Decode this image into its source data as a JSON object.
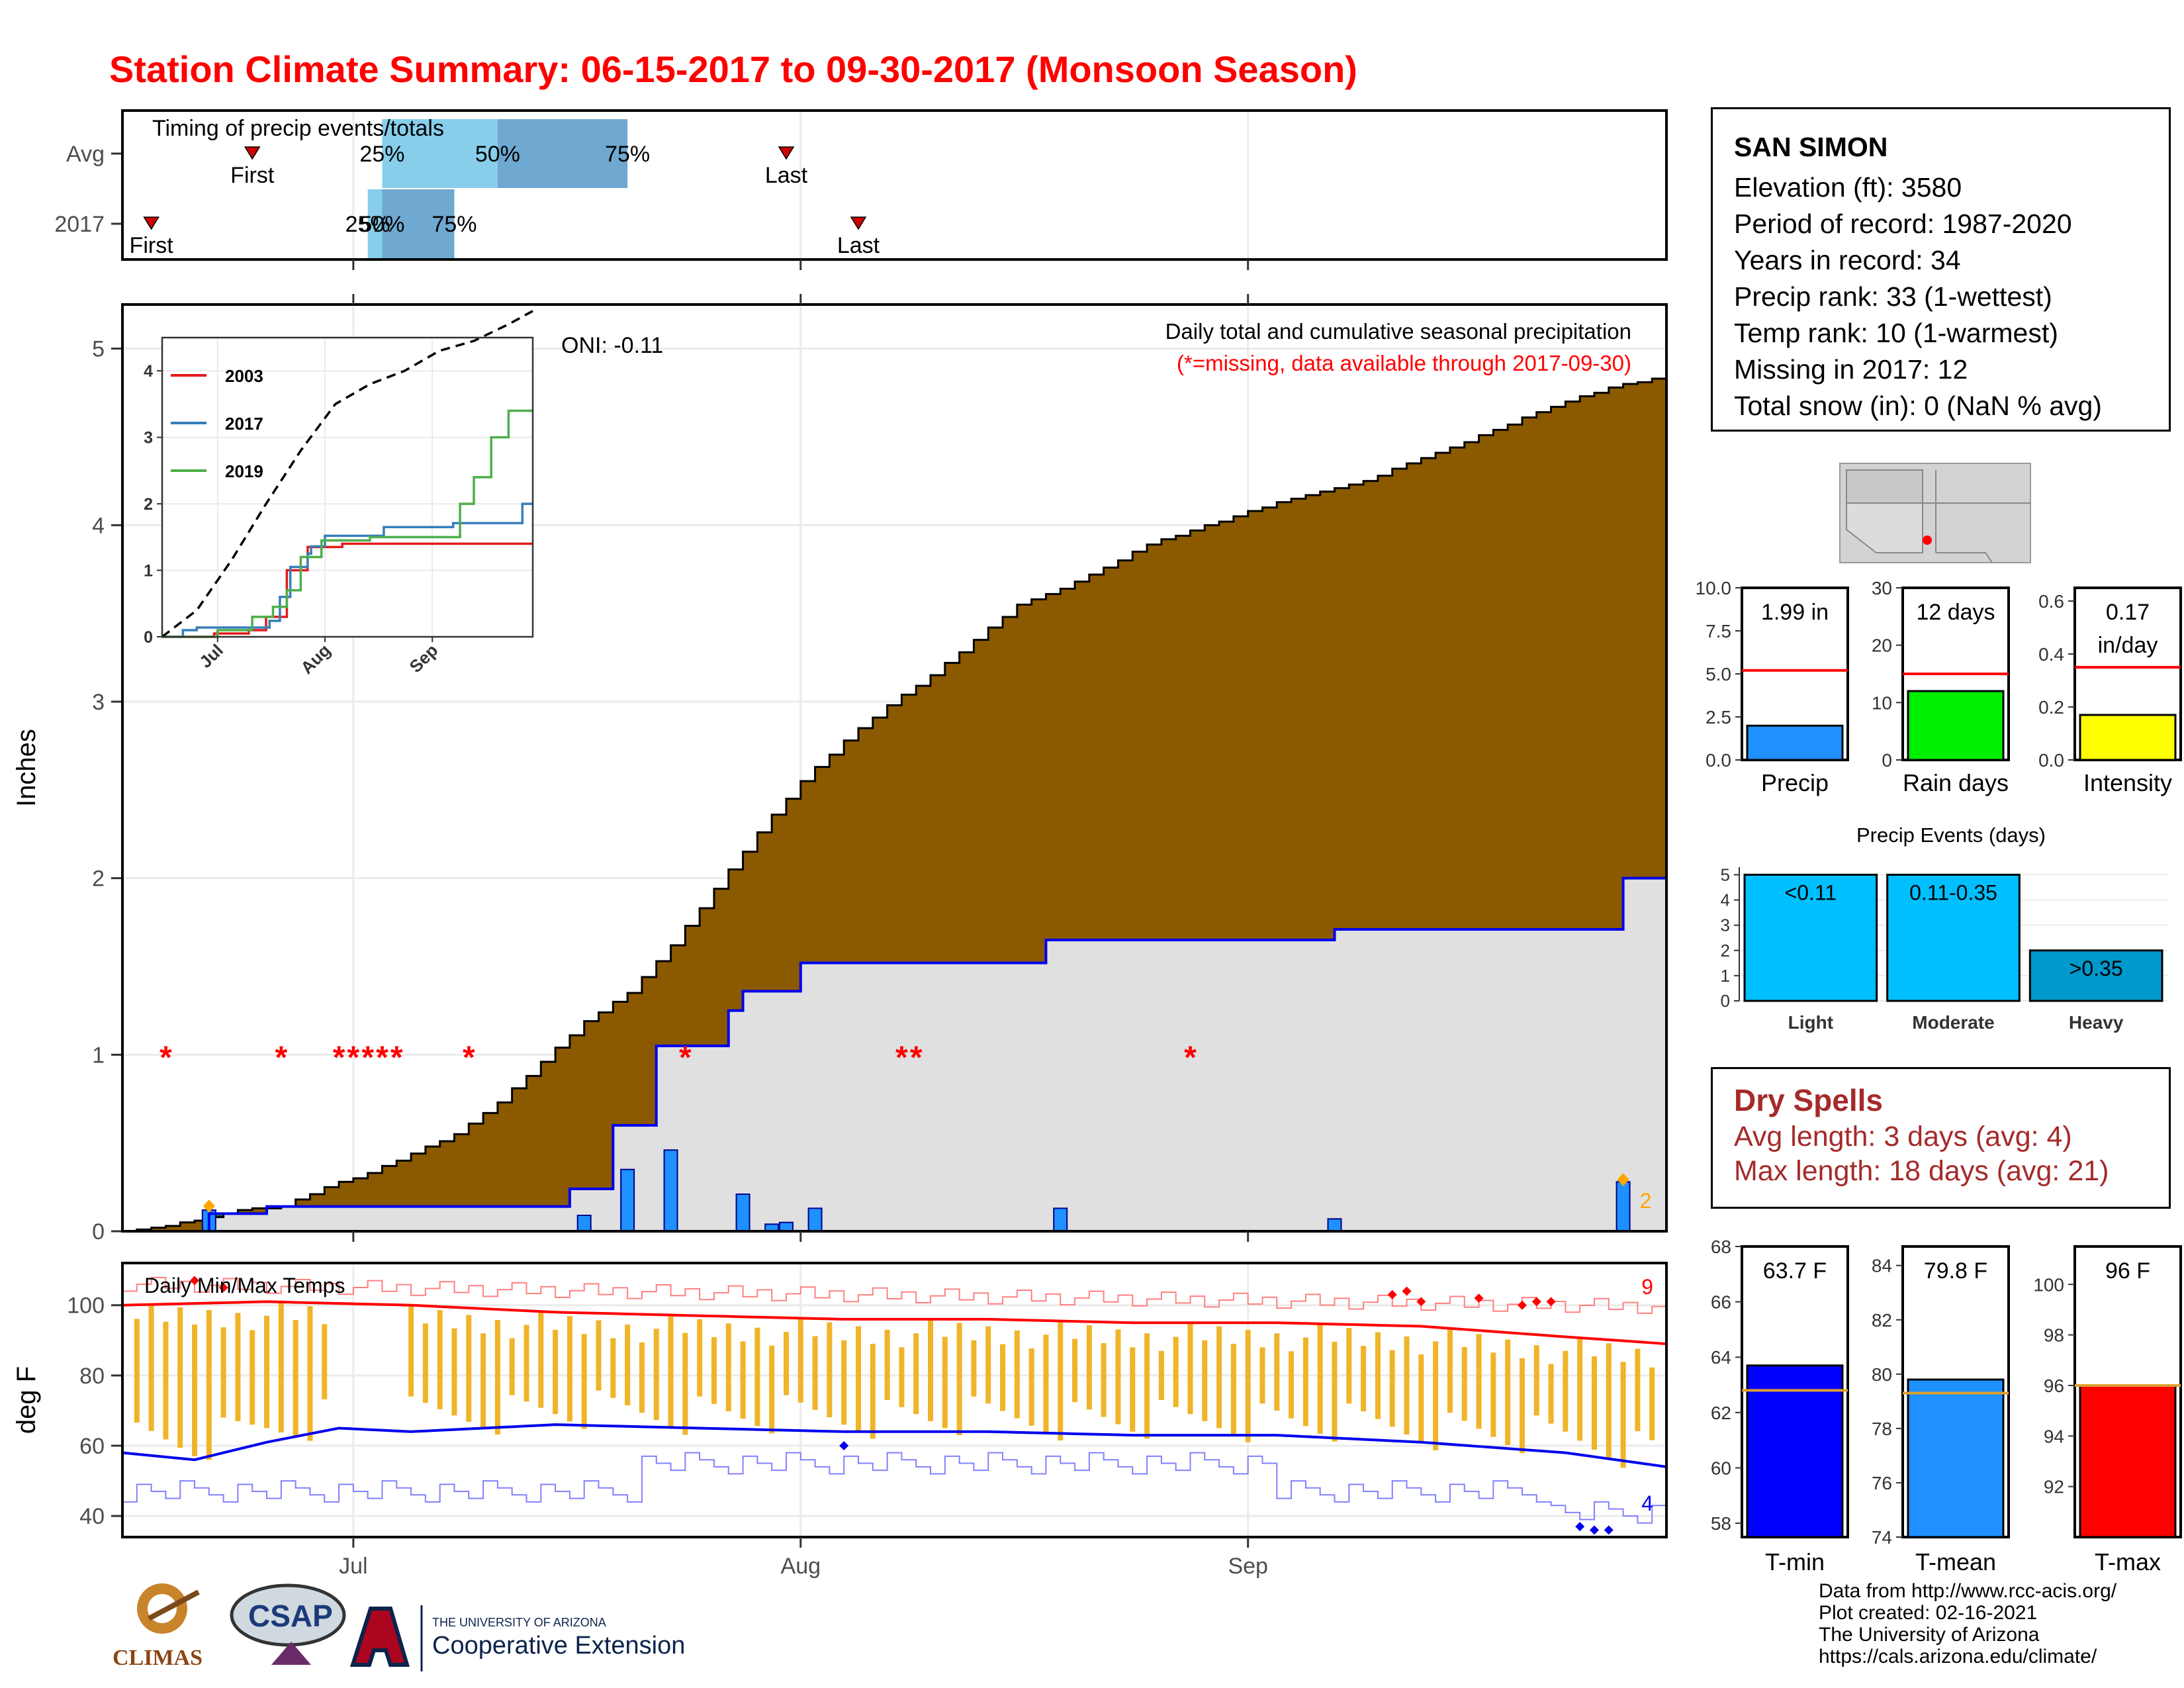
{
  "title": "Station Climate Summary: 06-15-2017 to 09-30-2017 (Monsoon Season)",
  "station": {
    "name": "SAN SIMON",
    "elevation": "Elevation (ft): 3580",
    "period": "Period of record: 1987-2020",
    "years": "Years in record: 34",
    "precip_rank": "Precip rank: 33 (1-wettest)",
    "temp_rank": "Temp rank: 10 (1-warmest)",
    "missing": "Missing in 2017: 12",
    "snow": "Total snow (in): 0 (NaN % avg)"
  },
  "dry_spells": {
    "heading": "Dry Spells",
    "avg": "Avg length: 3 days (avg: 4)",
    "max": "Max length: 18 days (avg: 21)"
  },
  "footer": {
    "line1": "Data from http://www.rcc-acis.org/",
    "line2": "Plot created: 02-16-2021",
    "line3": "The University of Arizona",
    "line4": "https://cals.arizona.edu/climate/"
  },
  "logos": {
    "climas": "CLIMAS",
    "csap": "CSAP",
    "ua_small": "THE UNIVERSITY OF ARIZONA",
    "ua_big": "Cooperative Extension"
  },
  "chart_data": [
    {
      "type": "bar",
      "title": "Timing of precip events/totals",
      "categories": [
        "Avg",
        "2017"
      ],
      "x_tick_labels": [
        "Jul",
        "Aug",
        "Sep"
      ],
      "x_day_range": [
        0,
        107
      ],
      "series": [
        {
          "name": "Avg",
          "first_day": 9,
          "q25_day": 18,
          "q50_day": 26,
          "q75_day": 35,
          "last_day": 46
        },
        {
          "name": "2017",
          "first_day": 2,
          "q25_day": 17,
          "q50_day": 18,
          "q75_day": 23,
          "last_day": 51
        }
      ],
      "labels": {
        "first": "First",
        "last": "Last",
        "q25": "25%",
        "q50": "50%",
        "q75": "75%"
      },
      "colors": {
        "light": "#87ceeb",
        "dark": "#6fa8d0",
        "marker": "#cc0000"
      }
    },
    {
      "type": "area",
      "title": "Daily total and cumulative seasonal precipitation",
      "subtitle": "(*=missing, data available through 2017-09-30)",
      "annotation": "ONI: -0.11",
      "ylabel": "Inches",
      "x_tick_labels": [
        "Jul",
        "Aug",
        "Sep"
      ],
      "ylim": [
        0,
        5.25
      ],
      "yticks": [
        0,
        1,
        2,
        3,
        4,
        5
      ],
      "avg_cumulative": {
        "day": [
          0,
          3,
          5,
          8,
          11,
          14,
          17,
          20,
          23,
          26,
          29,
          32,
          35,
          38,
          41,
          44,
          47,
          50,
          53,
          56,
          59,
          62,
          65,
          68,
          71,
          74,
          77,
          80,
          83,
          86,
          89,
          92,
          95,
          98,
          101,
          104,
          107
        ],
        "value": [
          0,
          0.03,
          0.06,
          0.12,
          0.14,
          0.25,
          0.33,
          0.44,
          0.55,
          0.73,
          0.96,
          1.19,
          1.35,
          1.62,
          1.94,
          2.26,
          2.55,
          2.78,
          2.98,
          3.15,
          3.35,
          3.55,
          3.64,
          3.76,
          3.89,
          3.97,
          4.05,
          4.13,
          4.19,
          4.25,
          4.35,
          4.44,
          4.54,
          4.64,
          4.73,
          4.8,
          4.84
        ]
      },
      "obs_cumulative": {
        "day": [
          0,
          6,
          10,
          31,
          34,
          37,
          42,
          43,
          47,
          64,
          84,
          104,
          107
        ],
        "value": [
          0,
          0.1,
          0.14,
          0.24,
          0.6,
          1.05,
          1.25,
          1.36,
          1.52,
          1.65,
          1.71,
          2.0,
          2.0
        ]
      },
      "daily_precip": {
        "day": [
          6,
          32,
          35,
          38,
          43,
          45,
          46,
          48,
          65,
          84,
          104
        ],
        "value": [
          0.12,
          0.09,
          0.35,
          0.46,
          0.21,
          0.04,
          0.05,
          0.13,
          0.13,
          0.07,
          0.28
        ]
      },
      "missing_days": [
        3,
        11,
        15,
        16,
        17,
        18,
        19,
        24,
        39,
        54,
        55,
        74
      ],
      "record_marker": {
        "day": 104,
        "label": "2"
      },
      "colors": {
        "above": "#8b5a00",
        "normal": "#e0e0e0",
        "below": "#1f7a1f",
        "bars": "#1e90ff",
        "obs_line": "#0000ee",
        "missing": "#ff0000",
        "record": "#ffa500"
      }
    },
    {
      "type": "line",
      "title": "",
      "x_tick_labels": [
        "Jul",
        "Aug",
        "Sep"
      ],
      "yticks": [
        0,
        1,
        2,
        3,
        4
      ],
      "ylim": [
        0,
        4.5
      ],
      "series": [
        {
          "name": "2003",
          "color": "#e41a1c",
          "day": [
            0,
            15,
            25,
            30,
            33,
            36,
            42,
            52,
            107
          ],
          "values": [
            0,
            0.05,
            0.1,
            0.3,
            0.3,
            1.0,
            1.35,
            1.4,
            1.4
          ]
        },
        {
          "name": "2017",
          "color": "#377eb8",
          "day": [
            0,
            6,
            10,
            31,
            34,
            37,
            42,
            43,
            47,
            64,
            84,
            104,
            107
          ],
          "values": [
            0,
            0.1,
            0.14,
            0.24,
            0.6,
            1.05,
            1.25,
            1.36,
            1.52,
            1.65,
            1.71,
            2.0,
            2.0
          ]
        },
        {
          "name": "2019",
          "color": "#4daf4a",
          "day": [
            0,
            16,
            26,
            32,
            36,
            40,
            46,
            60,
            80,
            86,
            90,
            95,
            100,
            107
          ],
          "values": [
            0,
            0.1,
            0.3,
            0.45,
            0.7,
            1.2,
            1.45,
            1.5,
            1.5,
            2.0,
            2.4,
            3.0,
            3.4,
            3.4
          ]
        },
        {
          "name": "",
          "color": "#000000",
          "day": [
            0,
            10,
            20,
            30,
            40,
            50,
            60,
            70,
            80,
            90,
            100,
            107
          ],
          "values": [
            0,
            0.4,
            1.15,
            2.0,
            2.8,
            3.5,
            3.8,
            4.0,
            4.3,
            4.45,
            4.7,
            4.9
          ]
        }
      ]
    },
    {
      "type": "bar",
      "title": "",
      "panels": [
        {
          "label": "Precip",
          "value_label": "1.99 in",
          "value": 1.99,
          "avg": 5.2,
          "ylim": [
            0,
            10
          ],
          "yticks": [
            "0.0",
            "2.5",
            "5.0",
            "7.5",
            "10.0"
          ],
          "color": "#1e90ff"
        },
        {
          "label": "Rain days",
          "value_label": "12 days",
          "value": 12,
          "avg": 15,
          "ylim": [
            0,
            30
          ],
          "yticks": [
            "0",
            "10",
            "20",
            "30"
          ],
          "color": "#00ee00"
        },
        {
          "label": "Intensity",
          "value_label": "0.17 in/day",
          "value_line1": "0.17",
          "value_line2": "in/day",
          "value": 0.17,
          "avg": 0.35,
          "ylim": [
            0,
            0.65
          ],
          "yticks": [
            "0.0",
            "0.2",
            "0.4",
            "0.6"
          ],
          "color": "#ffff00"
        }
      ]
    },
    {
      "type": "bar",
      "title": "Precip Events (days)",
      "categories": [
        "Light",
        "Moderate",
        "Heavy"
      ],
      "bar_labels": [
        "<0.11",
        "0.11-0.35",
        ">0.35"
      ],
      "values": [
        5,
        5,
        2
      ],
      "ylim": [
        0,
        5.3
      ],
      "yticks": [
        0,
        1,
        2,
        3,
        4,
        5
      ],
      "colors": [
        "#00bfff",
        "#00bfff",
        "#0099cc"
      ]
    },
    {
      "type": "line",
      "title": "Daily Min/Max Temps",
      "ylabel": "deg F",
      "x_tick_labels": [
        "Jul",
        "Aug",
        "Sep"
      ],
      "ylim": [
        34,
        112
      ],
      "yticks": [
        40,
        60,
        80,
        100
      ],
      "record_high_count": "9",
      "record_low_count": "4",
      "avg_max": {
        "day": [
          0,
          10,
          20,
          30,
          40,
          50,
          60,
          70,
          80,
          90,
          100,
          107
        ],
        "values": [
          100,
          101,
          100,
          98,
          97,
          96,
          96,
          95,
          95,
          94,
          91,
          89
        ]
      },
      "avg_min": {
        "day": [
          0,
          5,
          10,
          15,
          20,
          25,
          30,
          40,
          50,
          60,
          70,
          80,
          90,
          100,
          107
        ],
        "values": [
          58,
          56,
          61,
          65,
          64,
          65,
          66,
          65,
          64,
          64,
          63,
          63,
          61,
          58,
          54
        ]
      },
      "colors": {
        "bars": "#f0b429",
        "avg_max": "#ff0000",
        "avg_min": "#0000ee",
        "rec_max": "#ff8080",
        "rec_min": "#8080ff"
      }
    },
    {
      "type": "bar",
      "title": "",
      "panels": [
        {
          "label": "T-min",
          "value_label": "63.7 F",
          "value": 63.7,
          "avg": 62.8,
          "ylim": [
            57.5,
            68
          ],
          "yticks": [
            "58",
            "60",
            "62",
            "64",
            "66",
            "68"
          ],
          "color": "#0000ff"
        },
        {
          "label": "T-mean",
          "value_label": "79.8 F",
          "value": 79.8,
          "avg": 79.3,
          "ylim": [
            74,
            84.7
          ],
          "yticks": [
            "74",
            "76",
            "78",
            "80",
            "82",
            "84"
          ],
          "color": "#1e90ff"
        },
        {
          "label": "T-max",
          "value_label": "96 F",
          "value": 96,
          "avg": 96,
          "ylim": [
            90,
            101.5
          ],
          "yticks": [
            "92",
            "94",
            "96",
            "98",
            "100"
          ],
          "color": "#ff0000"
        }
      ]
    }
  ]
}
